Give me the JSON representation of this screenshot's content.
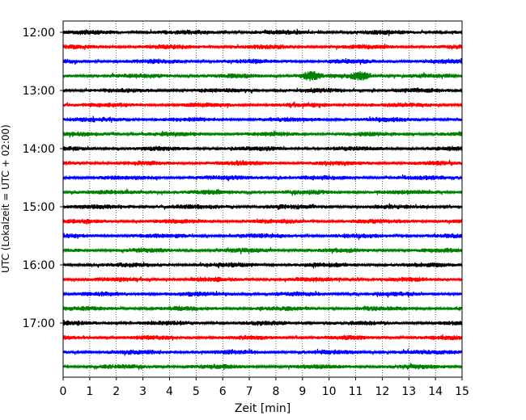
{
  "chart_data": {
    "type": "line",
    "title": "",
    "xlabel": "Zeit  [min]",
    "ylabel": "UTC (Lokalzeit = UTC + 02:00)",
    "xlim": [
      0,
      15
    ],
    "x_ticks": [
      0,
      1,
      2,
      3,
      4,
      5,
      6,
      7,
      8,
      9,
      10,
      11,
      12,
      13,
      14,
      15
    ],
    "y_ticks": [
      "12:00",
      "13:00",
      "14:00",
      "15:00",
      "16:00",
      "17:00"
    ],
    "grid": "vertical dotted",
    "trace_interval_minutes": 15,
    "trace_colors": [
      "#000000",
      "#ff0000",
      "#0000ff",
      "#008000"
    ],
    "traces": [
      {
        "start": "12:00",
        "color": "#000000"
      },
      {
        "start": "12:15",
        "color": "#ff0000"
      },
      {
        "start": "12:30",
        "color": "#0000ff"
      },
      {
        "start": "12:45",
        "color": "#008000"
      },
      {
        "start": "13:00",
        "color": "#000000"
      },
      {
        "start": "13:15",
        "color": "#ff0000"
      },
      {
        "start": "13:30",
        "color": "#0000ff"
      },
      {
        "start": "13:45",
        "color": "#008000"
      },
      {
        "start": "14:00",
        "color": "#000000"
      },
      {
        "start": "14:15",
        "color": "#ff0000"
      },
      {
        "start": "14:30",
        "color": "#0000ff"
      },
      {
        "start": "14:45",
        "color": "#008000"
      },
      {
        "start": "15:00",
        "color": "#000000"
      },
      {
        "start": "15:15",
        "color": "#ff0000"
      },
      {
        "start": "15:30",
        "color": "#0000ff"
      },
      {
        "start": "15:45",
        "color": "#008000"
      },
      {
        "start": "16:00",
        "color": "#000000"
      },
      {
        "start": "16:15",
        "color": "#ff0000"
      },
      {
        "start": "16:30",
        "color": "#0000ff"
      },
      {
        "start": "16:45",
        "color": "#008000"
      },
      {
        "start": "17:00",
        "color": "#000000"
      },
      {
        "start": "17:15",
        "color": "#ff0000"
      },
      {
        "start": "17:30",
        "color": "#0000ff"
      },
      {
        "start": "17:45",
        "color": "#008000"
      }
    ],
    "events": [
      {
        "trace": "12:45",
        "minute": 9.3,
        "amplitude": "large"
      },
      {
        "trace": "12:45",
        "minute": 11.2,
        "amplitude": "large"
      }
    ]
  }
}
